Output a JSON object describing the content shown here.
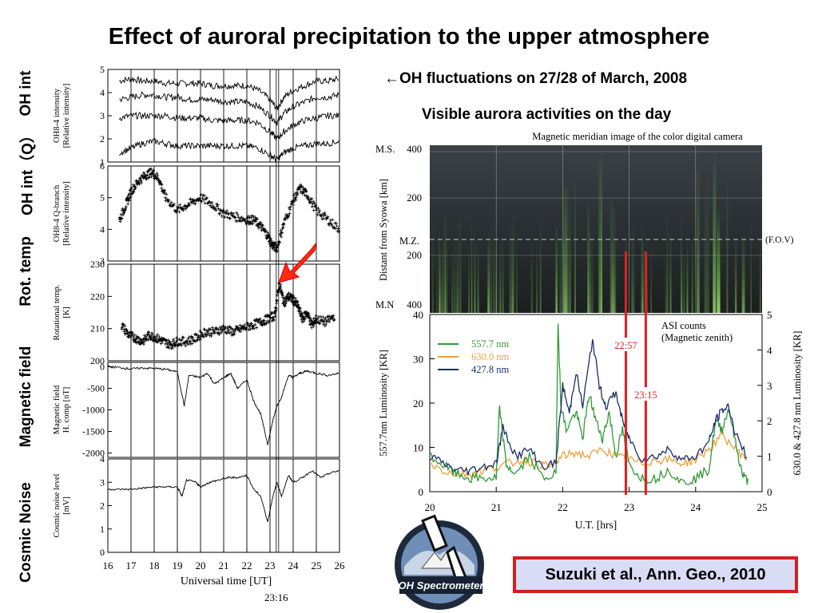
{
  "slide": {
    "title": "Effect of auroral precipitation to the upper atmosphere",
    "left_labels": [
      "OH int",
      "OH int（Q）",
      "Rot. temp",
      "Magnetic field",
      "Cosmic Noise"
    ],
    "caption_1": "←OH fluctuations on 27/28 of March, 2008",
    "caption_2": "Visible aurora activities on the day",
    "citation": "Suzuki et al., Ann. Geo., 2010",
    "logo_text": "OH Spectrometer"
  },
  "colors": {
    "citation_border": "#d21f1f",
    "citation_bg": "#d9dcf5",
    "marker_red": "#e01f1f",
    "arrow_red": "#ff2a12",
    "green_557": "#2f9a35",
    "orange_630": "#e8a23a",
    "blue_427": "#1c2d6b"
  },
  "chart_data": [
    {
      "type": "line",
      "panel": "left-stack",
      "xlabel": "Universal time [UT]",
      "x_ticks": [
        "16",
        "17",
        "18",
        "19",
        "20",
        "21",
        "22",
        "23",
        "24",
        "25",
        "26"
      ],
      "xlim": [
        16,
        26
      ],
      "marker_label": "23:16",
      "marker_x": 23.27,
      "vertical_lines_x": [
        17,
        18,
        19,
        20,
        21,
        22,
        23,
        24,
        25,
        26
      ],
      "panels": [
        {
          "name": "oh-int",
          "ylabel_lines": [
            "OH8-4 intensity",
            "[Relative intensity]"
          ],
          "ylim": [
            1,
            5
          ],
          "yticks": [
            "1",
            "2",
            "3",
            "4",
            "5"
          ],
          "series": [
            {
              "x": [
                16.5,
                17,
                17.5,
                18,
                18.5,
                19,
                19.5,
                20,
                20.5,
                21,
                21.5,
                22,
                22.5,
                23,
                23.3,
                23.6,
                24,
                24.5,
                25,
                25.5,
                26
              ],
              "y": [
                4.5,
                4.6,
                4.5,
                4.5,
                4.4,
                4.4,
                4.4,
                4.4,
                4.3,
                4.3,
                4.3,
                4.3,
                4.1,
                3.7,
                3.3,
                3.8,
                4.1,
                4.3,
                4.5,
                4.5,
                4.6
              ]
            },
            {
              "x": [
                16.5,
                17,
                17.5,
                18,
                18.5,
                19,
                19.5,
                20,
                20.5,
                21,
                21.5,
                22,
                22.5,
                23,
                23.3,
                23.6,
                24,
                24.5,
                25,
                25.5,
                26
              ],
              "y": [
                3.7,
                3.8,
                3.9,
                3.9,
                3.8,
                3.8,
                3.7,
                3.7,
                3.7,
                3.6,
                3.6,
                3.6,
                3.4,
                3.0,
                2.7,
                3.1,
                3.4,
                3.6,
                3.8,
                3.8,
                3.9
              ]
            },
            {
              "x": [
                16.5,
                17,
                17.5,
                18,
                18.5,
                19,
                19.5,
                20,
                20.5,
                21,
                21.5,
                22,
                22.5,
                23,
                23.3,
                23.6,
                24,
                24.5,
                25,
                25.5,
                26
              ],
              "y": [
                2.9,
                3.0,
                3.0,
                3.0,
                3.0,
                2.9,
                2.9,
                2.9,
                2.8,
                2.8,
                2.8,
                2.8,
                2.7,
                2.3,
                2.0,
                2.3,
                2.6,
                2.8,
                2.9,
                3.0,
                3.0
              ]
            },
            {
              "x": [
                16.5,
                17,
                17.5,
                18,
                18.5,
                19,
                19.5,
                20,
                20.5,
                21,
                21.5,
                22,
                22.5,
                23,
                23.3,
                23.6,
                24,
                24.5,
                25,
                25.5,
                26
              ],
              "y": [
                1.4,
                1.6,
                1.8,
                1.9,
                1.8,
                1.7,
                1.7,
                1.7,
                1.7,
                1.7,
                1.7,
                1.7,
                1.6,
                1.3,
                1.1,
                1.4,
                1.6,
                1.7,
                1.8,
                1.8,
                1.9
              ]
            }
          ]
        },
        {
          "name": "oh-int-q",
          "ylabel_lines": [
            "OH8-4 Q-branch",
            "[Relative intensity]"
          ],
          "ylim": [
            3,
            6
          ],
          "yticks": [
            "3",
            "4",
            "5",
            "6"
          ],
          "style": "scatter",
          "series": [
            {
              "x": [
                16.5,
                16.8,
                17,
                17.3,
                17.6,
                17.9,
                18.2,
                18.5,
                19,
                19.5,
                20,
                20.5,
                21,
                21.5,
                22,
                22.3,
                22.6,
                22.9,
                23.1,
                23.3,
                23.6,
                24,
                24.3,
                24.6,
                25,
                25.5,
                26
              ],
              "y": [
                4.3,
                4.8,
                5.2,
                5.5,
                5.7,
                5.8,
                5.6,
                5.0,
                4.6,
                4.8,
                5.0,
                4.8,
                4.5,
                4.4,
                4.3,
                4.3,
                4.1,
                3.8,
                3.5,
                3.4,
                4.2,
                4.9,
                5.3,
                5.1,
                4.6,
                4.3,
                4.0
              ]
            }
          ]
        },
        {
          "name": "rot-temp",
          "ylabel_lines": [
            "Rotational temp.",
            "[K]"
          ],
          "ylim": [
            200,
            230
          ],
          "yticks": [
            "200",
            "210",
            "220",
            "230"
          ],
          "style": "scatter",
          "series": [
            {
              "x": [
                16.6,
                16.9,
                17.2,
                17.5,
                17.8,
                18.1,
                18.4,
                18.7,
                19,
                19.4,
                19.8,
                20.2,
                20.6,
                21,
                21.4,
                21.8,
                22.2,
                22.6,
                22.9,
                23.2,
                23.4,
                23.6,
                23.8,
                24,
                24.2,
                24.4,
                24.6,
                24.8,
                25,
                25.4,
                25.8
              ],
              "y": [
                211,
                208,
                207,
                206,
                208,
                207,
                206,
                205,
                206,
                206,
                207,
                209,
                209,
                210,
                209,
                210,
                211,
                212,
                213,
                214,
                224,
                218,
                220,
                219,
                217,
                213,
                215,
                211,
                213,
                212,
                214
              ]
            }
          ]
        },
        {
          "name": "magnetic-field",
          "ylabel_lines": [
            "Magnetic field",
            "H. comp [nT]"
          ],
          "ylim": [
            -2100,
            100
          ],
          "yticks": [
            "0",
            "-500",
            "-1000",
            "-1500",
            "-2000"
          ],
          "series": [
            {
              "x": [
                16,
                16.5,
                17,
                17.5,
                18,
                18.5,
                19,
                19.3,
                19.5,
                20,
                20.3,
                20.6,
                21,
                21.3,
                21.6,
                22,
                22.3,
                22.6,
                22.9,
                23.1,
                23.3,
                23.5,
                23.8,
                24,
                24.3,
                24.6,
                25,
                25.5,
                26
              ],
              "y": [
                0,
                -20,
                -50,
                -30,
                -40,
                -60,
                -120,
                -900,
                -200,
                -250,
                -150,
                -400,
                -260,
                -150,
                -500,
                -300,
                -800,
                -1100,
                -1800,
                -1300,
                -900,
                -700,
                -200,
                -250,
                -150,
                -100,
                -150,
                -200,
                -150
              ]
            }
          ]
        },
        {
          "name": "cosmic-noise",
          "ylabel_lines": [
            "Cosmic noise level",
            "[mV]"
          ],
          "ylim": [
            0,
            4
          ],
          "yticks": [
            "0",
            "1",
            "2",
            "3",
            "4"
          ],
          "series": [
            {
              "x": [
                16,
                16.5,
                17,
                17.5,
                18,
                18.5,
                19,
                19.2,
                19.4,
                19.8,
                20,
                20.4,
                20.8,
                21.2,
                21.6,
                22,
                22.3,
                22.6,
                22.9,
                23.1,
                23.3,
                23.5,
                23.8,
                24,
                24.4,
                24.8,
                25.2,
                25.6,
                26
              ],
              "y": [
                2.7,
                2.7,
                2.7,
                2.75,
                2.8,
                2.8,
                2.8,
                2.4,
                3.1,
                3.0,
                2.8,
                3.0,
                3.1,
                3.2,
                3.2,
                3.3,
                2.7,
                2.4,
                1.3,
                2.3,
                3.0,
                2.4,
                3.3,
                3.0,
                3.2,
                3.5,
                3.2,
                3.4,
                3.5
              ]
            }
          ]
        }
      ]
    },
    {
      "type": "line",
      "panel": "aurora-luminosity",
      "title_lines": [
        "ASI counts",
        "(Magnetic zenith)"
      ],
      "xlabel": "U.T. [hrs]",
      "ylabel": "557.7nm  Luminosity [KR]",
      "ylabel_right": "630.0 & 427.8 nm  Luminosity [KR]",
      "xlim": [
        20,
        25
      ],
      "ylim": [
        0,
        40
      ],
      "ylim_right": [
        0,
        5
      ],
      "x_ticks": [
        "20",
        "21",
        "22",
        "23",
        "24",
        "25"
      ],
      "y_ticks": [
        "0",
        "10",
        "20",
        "30",
        "40"
      ],
      "y_ticks_right": [
        "0",
        "1",
        "2",
        "3",
        "4",
        "5"
      ],
      "markers": [
        {
          "x": 22.95,
          "label": "22:57"
        },
        {
          "x": 23.25,
          "label": "23:15"
        }
      ],
      "legend_position": "upper-left",
      "series": [
        {
          "name": "557.7 nm",
          "axis": "left",
          "x": [
            20,
            20.2,
            20.4,
            20.6,
            20.8,
            21,
            21.05,
            21.15,
            21.3,
            21.5,
            21.7,
            21.9,
            21.93,
            21.97,
            22.05,
            22.2,
            22.3,
            22.4,
            22.5,
            22.6,
            22.7,
            22.8,
            22.9,
            23,
            23.2,
            23.4,
            23.6,
            23.8,
            24,
            24.2,
            24.3,
            24.4,
            24.5,
            24.6,
            24.7,
            24.8
          ],
          "y": [
            8,
            6,
            4,
            3,
            3,
            3,
            19,
            6,
            4,
            8,
            3,
            4,
            39,
            20,
            14,
            18,
            12,
            22,
            16,
            12,
            18,
            8,
            14,
            6,
            3,
            3,
            5,
            2,
            3,
            5,
            16,
            14,
            19,
            11,
            4,
            2
          ]
        },
        {
          "name": "630.0 nm",
          "axis": "right",
          "x": [
            20,
            20.2,
            20.4,
            20.6,
            20.8,
            21,
            21.2,
            21.4,
            21.6,
            21.8,
            22,
            22.2,
            22.4,
            22.6,
            22.8,
            23,
            23.2,
            23.4,
            23.6,
            23.8,
            24,
            24.2,
            24.4,
            24.6,
            24.8
          ],
          "y": [
            0.8,
            0.6,
            0.5,
            0.5,
            0.6,
            0.7,
            0.8,
            0.9,
            0.8,
            0.7,
            1.0,
            1.1,
            1.0,
            1.2,
            1.0,
            0.9,
            0.8,
            0.9,
            0.9,
            0.8,
            0.9,
            1.2,
            1.6,
            1.2,
            0.9
          ]
        },
        {
          "name": "427.8 nm",
          "axis": "right",
          "x": [
            20,
            20.2,
            20.4,
            20.6,
            20.8,
            21,
            21.1,
            21.3,
            21.5,
            21.7,
            21.9,
            22,
            22.1,
            22.2,
            22.3,
            22.45,
            22.55,
            22.65,
            22.8,
            22.9,
            23,
            23.2,
            23.4,
            23.6,
            23.8,
            24,
            24.2,
            24.3,
            24.4,
            24.5,
            24.6,
            24.8
          ],
          "y": [
            1.0,
            0.8,
            0.6,
            0.6,
            0.7,
            0.8,
            1.8,
            1.0,
            1.2,
            0.7,
            0.8,
            3.0,
            2.2,
            3.4,
            2.4,
            4.3,
            3.0,
            2.4,
            2.8,
            2.0,
            1.5,
            0.9,
            1.0,
            1.2,
            0.9,
            1.0,
            1.4,
            2.0,
            2.3,
            2.4,
            1.6,
            0.9
          ]
        }
      ]
    },
    {
      "type": "heatmap",
      "panel": "aurora-keogram",
      "title": "Magnetic meridian image of the color digital camera",
      "ylabel": "Distant from Syowa [km]",
      "y_tick_labels": [
        "400",
        "200",
        "200",
        "400"
      ],
      "side_labels": [
        "M.S.",
        "M.Z.",
        "M.N"
      ],
      "fov_label": "(F.O.V)",
      "xlim": [
        20,
        25
      ]
    }
  ]
}
